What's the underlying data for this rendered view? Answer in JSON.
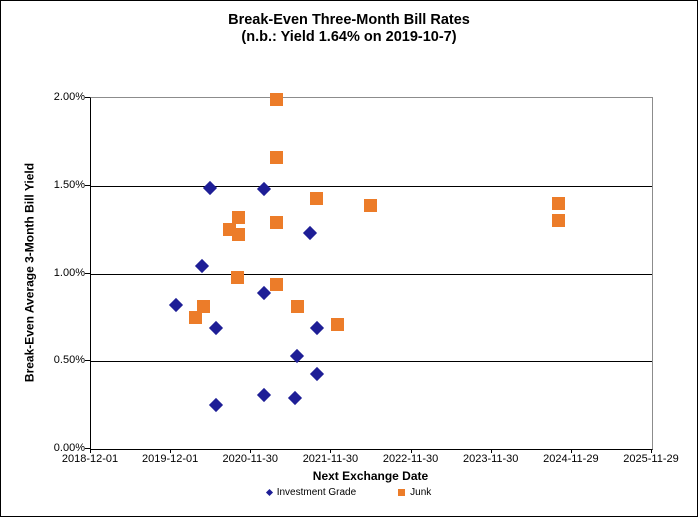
{
  "chart_data": {
    "type": "scatter",
    "title": "Break-Even Three-Month Bill Rates",
    "subtitle": "(n.b.: Yield 1.64% on 2019-10-7)",
    "xlabel": "Next Exchange Date",
    "ylabel": "Break-Even Average 3-Month Bill Yield",
    "grid": true,
    "legend_position": "bottom",
    "x_axis": {
      "start_date": "2018-12-01",
      "years_span": 7,
      "ticks": [
        "2018-12-01",
        "2019-12-01",
        "2020-11-30",
        "2021-11-30",
        "2022-11-30",
        "2023-11-30",
        "2024-11-29",
        "2025-11-29"
      ]
    },
    "y_axis": {
      "min": 0,
      "max": 2,
      "ticks": [
        "0.00%",
        "0.50%",
        "1.00%",
        "1.50%",
        "2.00%"
      ],
      "tick_values": [
        0,
        0.5,
        1.0,
        1.5,
        2.0
      ]
    },
    "series": [
      {
        "name": "Investment Grade",
        "marker": "diamond",
        "color": "#1E1E96",
        "points": [
          [
            "2020-05-27",
            1.49
          ],
          [
            "2021-01-28",
            1.48
          ],
          [
            "2021-08-23",
            1.23
          ],
          [
            "2020-04-20",
            1.04
          ],
          [
            "2021-01-28",
            0.89
          ],
          [
            "2019-12-24",
            0.82
          ],
          [
            "2020-06-24",
            0.69
          ],
          [
            "2021-09-26",
            0.69
          ],
          [
            "2021-06-27",
            0.53
          ],
          [
            "2021-09-26",
            0.43
          ],
          [
            "2021-01-28",
            0.31
          ],
          [
            "2021-06-19",
            0.29
          ],
          [
            "2020-06-24",
            0.25
          ]
        ]
      },
      {
        "name": "Junk",
        "marker": "square",
        "color": "#EC7C29",
        "points": [
          [
            "2021-03-26",
            1.99
          ],
          [
            "2021-03-26",
            1.66
          ],
          [
            "2021-09-22",
            1.43
          ],
          [
            "2022-05-27",
            1.39
          ],
          [
            "2020-10-01",
            1.32
          ],
          [
            "2020-08-22",
            1.25
          ],
          [
            "2020-10-01",
            1.22
          ],
          [
            "2021-03-26",
            1.29
          ],
          [
            "2024-10-02",
            1.4
          ],
          [
            "2024-10-02",
            1.3
          ],
          [
            "2020-09-30",
            0.98
          ],
          [
            "2021-03-26",
            0.94
          ],
          [
            "2021-06-27",
            0.81
          ],
          [
            "2020-04-27",
            0.81
          ],
          [
            "2020-03-20",
            0.75
          ],
          [
            "2021-12-27",
            0.71
          ]
        ]
      }
    ],
    "colors": {
      "gridline": "#000000",
      "plot_border": "#8C8C8C",
      "background": "#FFFFFF"
    }
  }
}
